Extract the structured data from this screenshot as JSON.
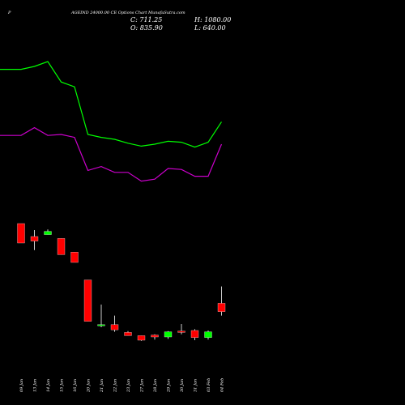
{
  "chart_data": {
    "type": "candlestick",
    "title_letter": "P",
    "title": "AGEIND 24000.00 CE Options  Chart MunafaSutra.com",
    "ohlc_text": {
      "c": "C: 711.25",
      "o": "O: 835.90",
      "h": "H: 1080.00",
      "l": "L: 640.00"
    },
    "colors": {
      "background": "#000000",
      "up": "#00ff00",
      "down": "#ff0000",
      "wick": "#ffffff",
      "line_upper": "#00ff00",
      "line_lower": "#cc00cc"
    },
    "candles": [
      {
        "date": "09 Jan",
        "dir": "down",
        "o": 0.9,
        "c": 0.75,
        "h": 0.9,
        "l": 0.75
      },
      {
        "date": "13 Jan",
        "dir": "down",
        "o": 0.8,
        "c": 0.765,
        "h": 0.85,
        "l": 0.695
      },
      {
        "date": "14 Jan",
        "dir": "up",
        "o": 0.815,
        "c": 0.84,
        "h": 0.855,
        "l": 0.815
      },
      {
        "date": "15 Jan",
        "dir": "down",
        "o": 0.785,
        "c": 0.66,
        "h": 0.785,
        "l": 0.66
      },
      {
        "date": "16 Jan",
        "dir": "down",
        "o": 0.68,
        "c": 0.6,
        "h": 0.68,
        "l": 0.6
      },
      {
        "date": "20 Jan",
        "dir": "down",
        "o": 0.465,
        "c": 0.145,
        "h": 0.465,
        "l": 0.145
      },
      {
        "date": "21 Jan",
        "dir": "up",
        "o": 0.115,
        "c": 0.12,
        "h": 0.275,
        "l": 0.1
      },
      {
        "date": "22 Jan",
        "dir": "down",
        "o": 0.12,
        "c": 0.08,
        "h": 0.19,
        "l": 0.065
      },
      {
        "date": "23 Jan",
        "dir": "down",
        "o": 0.06,
        "c": 0.035,
        "h": 0.07,
        "l": 0.035
      },
      {
        "date": "27 Jan",
        "dir": "down",
        "o": 0.035,
        "c": 0.0,
        "h": 0.035,
        "l": -0.005
      },
      {
        "date": "28 Jan",
        "dir": "down",
        "o": 0.04,
        "c": 0.025,
        "h": 0.045,
        "l": 0.005
      },
      {
        "date": "29 Jan",
        "dir": "up",
        "o": 0.025,
        "c": 0.065,
        "h": 0.07,
        "l": 0.01
      },
      {
        "date": "30 Jan",
        "dir": "down",
        "o": 0.07,
        "c": 0.06,
        "h": 0.125,
        "l": 0.045
      },
      {
        "date": "31 Jan",
        "dir": "down",
        "o": 0.075,
        "c": 0.02,
        "h": 0.085,
        "l": 0.0
      },
      {
        "date": "03 Feb",
        "dir": "up",
        "o": 0.02,
        "c": 0.065,
        "h": 0.075,
        "l": 0.005
      },
      {
        "date": "04 Feb",
        "dir": "down",
        "o": 0.285,
        "c": 0.22,
        "h": 0.415,
        "l": 0.19
      }
    ],
    "line_upper": [
      0.81,
      0.81,
      0.825,
      0.85,
      0.745,
      0.72,
      0.475,
      0.46,
      0.45,
      0.43,
      0.415,
      0.425,
      0.44,
      0.435,
      0.41,
      0.435,
      0.54
    ],
    "line_lower": [
      0.47,
      0.47,
      0.51,
      0.47,
      0.475,
      0.46,
      0.29,
      0.31,
      0.28,
      0.28,
      0.235,
      0.245,
      0.3,
      0.295,
      0.26,
      0.26,
      0.425
    ],
    "line_x_start_offset": -1.5
  }
}
